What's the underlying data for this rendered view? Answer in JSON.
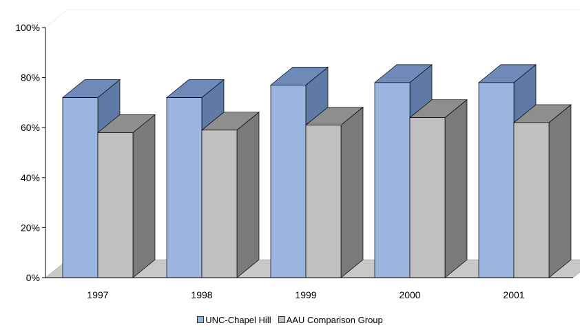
{
  "chart_data": {
    "type": "bar",
    "categories": [
      "1997",
      "1998",
      "1999",
      "2000",
      "2001"
    ],
    "series": [
      {
        "name": "UNC-Chapel Hill",
        "values": [
          72,
          72,
          77,
          78,
          78
        ],
        "color": "#9ab5e0"
      },
      {
        "name": "AAU Comparison Group",
        "values": [
          58,
          59,
          61,
          64,
          62
        ],
        "color": "#c0c0c0"
      }
    ],
    "ylim": [
      0,
      100
    ],
    "yticks": [
      "0%",
      "20%",
      "40%",
      "60%",
      "80%",
      "100%"
    ],
    "legend_position": "bottom",
    "grid": false,
    "style": "3d-clustered-column"
  }
}
